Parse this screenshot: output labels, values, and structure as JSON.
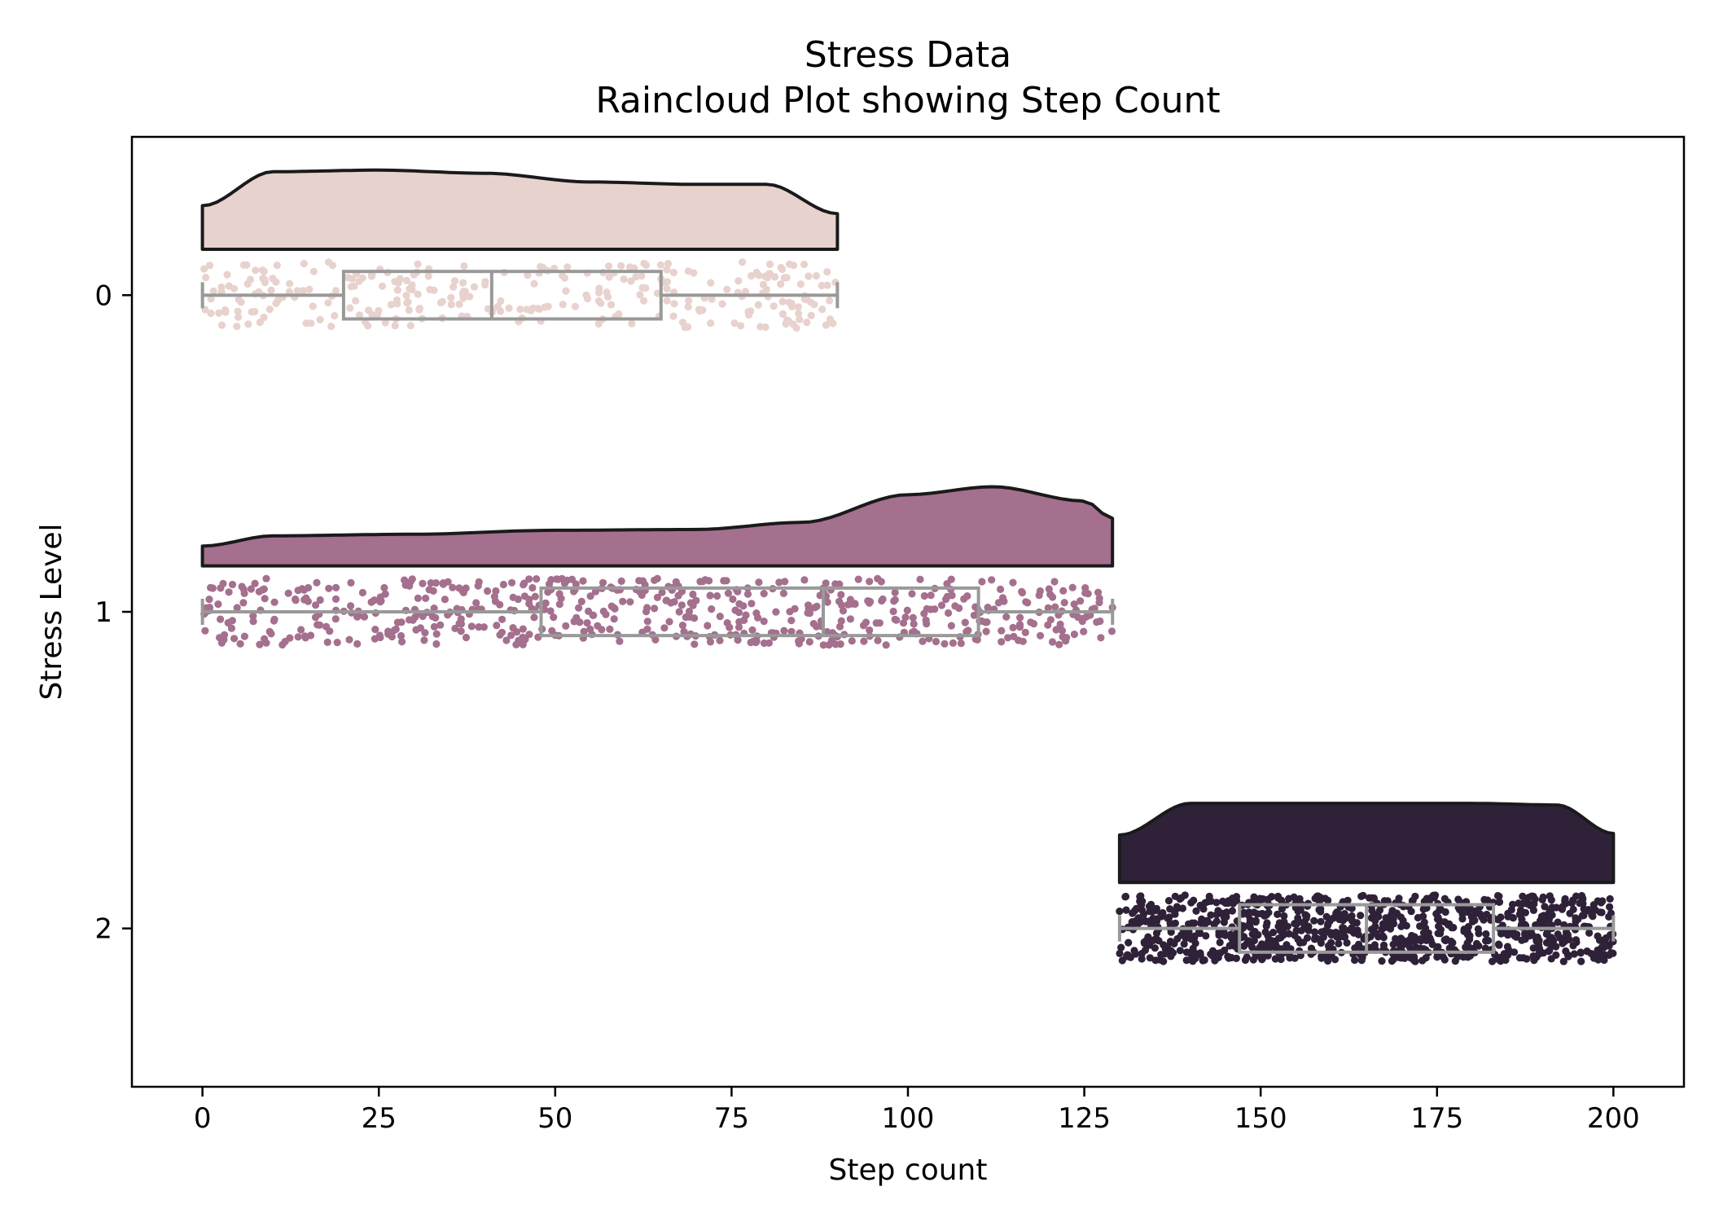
{
  "chart_data": {
    "type": "raincloud",
    "title": "Stress Data",
    "subtitle": "Raincloud Plot showing Step Count",
    "xlabel": "Step count",
    "ylabel": "Stress Level",
    "xlim": [
      -10,
      210
    ],
    "ylim": [
      2.5,
      -0.5
    ],
    "xticks": [
      0,
      25,
      50,
      75,
      100,
      125,
      150,
      175,
      200
    ],
    "yticks": [
      0,
      1,
      2
    ],
    "grid": false,
    "box_color": "#999999",
    "outline_color": "#1a1a1a",
    "groups": [
      {
        "category": 0,
        "color": "#e8d2cd",
        "min": 0,
        "q1": 20,
        "median": 41,
        "q3": 65,
        "max": 90,
        "point_count": 300,
        "density": {
          "x": [
            0,
            10,
            25,
            40,
            55,
            70,
            80,
            90
          ],
          "y": [
            0.55,
            0.98,
            1.0,
            0.96,
            0.85,
            0.82,
            0.82,
            0.45
          ]
        }
      },
      {
        "category": 1,
        "color": "#a4708e",
        "min": 0,
        "q1": 48,
        "median": 88,
        "q3": 110,
        "max": 129,
        "point_count": 600,
        "density": {
          "x": [
            0,
            10,
            30,
            50,
            70,
            85,
            100,
            112,
            125,
            129
          ],
          "y": [
            0.25,
            0.38,
            0.4,
            0.45,
            0.46,
            0.55,
            0.9,
            1.0,
            0.82,
            0.6
          ]
        }
      },
      {
        "category": 2,
        "color": "#2e2138",
        "min": 130,
        "q1": 147,
        "median": 165,
        "q3": 183,
        "max": 200,
        "point_count": 900,
        "density": {
          "x": [
            130,
            140,
            150,
            165,
            180,
            192,
            200
          ],
          "y": [
            0.6,
            1.0,
            1.0,
            1.0,
            1.0,
            0.98,
            0.62
          ]
        }
      }
    ]
  }
}
